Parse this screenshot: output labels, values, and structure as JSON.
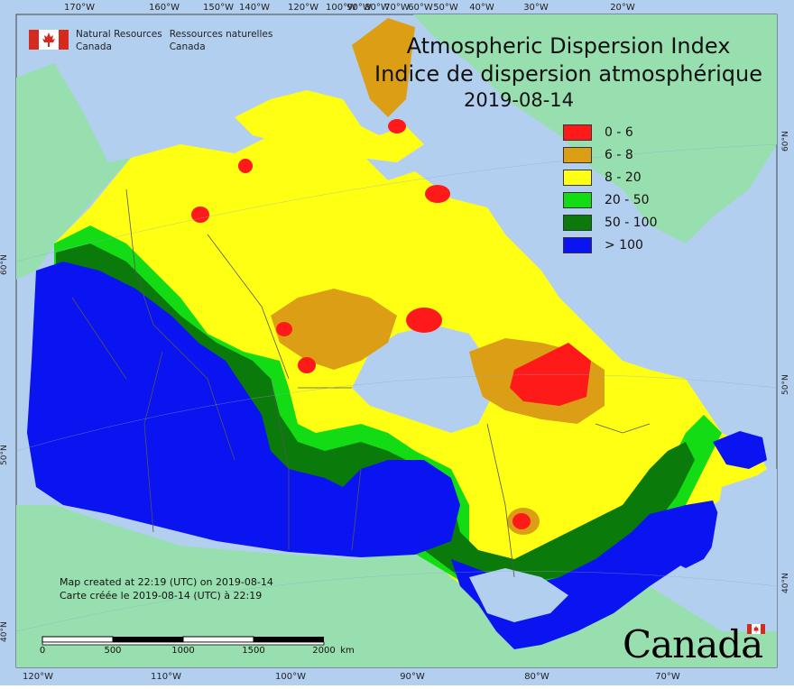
{
  "header": {
    "org_en": "Natural Resources",
    "org_en_2": "Canada",
    "org_fr": "Ressources naturelles",
    "org_fr_2": "Canada"
  },
  "title": {
    "en": "Atmospheric Dispersion Index",
    "fr": "Indice de dispersion atmosphérique",
    "date": "2019-08-14"
  },
  "legend": [
    {
      "label": "0 - 6",
      "color": "#ff1a1a"
    },
    {
      "label": "6 - 8",
      "color": "#dc9e14"
    },
    {
      "label": "8 - 20",
      "color": "#ffff14"
    },
    {
      "label": "20 - 50",
      "color": "#14dc14"
    },
    {
      "label": "50 - 100",
      "color": "#0a7a0a"
    },
    {
      "label": "> 100",
      "color": "#0a14f0"
    }
  ],
  "map": {
    "ocean_color": "#b3cff0",
    "land_outside_color": "#98dfb0",
    "top_ticks": [
      "170°W",
      "160°W",
      "150°W",
      "140°W",
      "120°W",
      "100°W",
      "90°W",
      "80°W",
      "70°W",
      "60°W",
      "50°W",
      "40°W",
      "30°W",
      "20°W"
    ],
    "bottom_ticks": [
      "120°W",
      "110°W",
      "100°W",
      "90°W",
      "80°W",
      "70°W"
    ],
    "left_ticks": [
      "60°N",
      "50°N",
      "40°N"
    ],
    "right_ticks": [
      "60°N",
      "50°N",
      "40°N"
    ]
  },
  "footer": {
    "created_en": "Map created at 22:19 (UTC) on 2019-08-14",
    "created_fr": "Carte créée le 2019-08-14 (UTC) à 22:19",
    "scale_labels": [
      "0",
      "500",
      "1000",
      "1500",
      "2000",
      "km"
    ],
    "wordmark": "Canada"
  }
}
